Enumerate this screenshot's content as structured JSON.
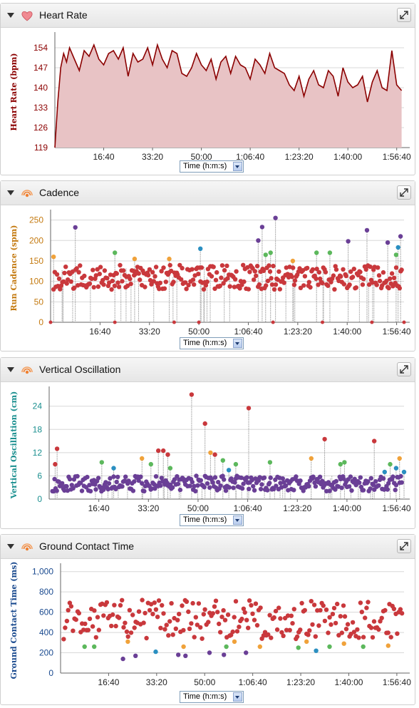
{
  "panels": [
    {
      "title": "Heart Rate",
      "icon": "heart-icon"
    },
    {
      "title": "Cadence",
      "icon": "sensor-icon"
    },
    {
      "title": "Vertical Oscillation",
      "icon": "sensor-icon"
    },
    {
      "title": "Ground Contact Time",
      "icon": "sensor-icon"
    }
  ],
  "time_select_label": "Time (h:m:s)",
  "x_tick_labels": [
    "16:40",
    "33:20",
    "50:00",
    "1:06:40",
    "1:23:20",
    "1:40:00",
    "1:56:40"
  ],
  "colors": {
    "hr_line": "#8b0000",
    "hr_fill": "#e8c3c5",
    "red": "#c9383c",
    "orange": "#f0a23a",
    "green": "#5cb85c",
    "blue": "#2a8fc1",
    "purple": "#6a3f96",
    "cadence_label": "#c47a10",
    "vo_label": "#1a8f8f",
    "gct_label": "#1a4a8f"
  },
  "chart_data": [
    {
      "type": "area",
      "title": "Heart Rate",
      "ylabel": "Heart Rate (bpm)",
      "yticks": [
        119,
        126,
        133,
        140,
        147,
        154
      ],
      "ylim": [
        119,
        158
      ],
      "xlim": [
        0,
        7150
      ],
      "xticks_seconds": [
        1000,
        2000,
        3000,
        4000,
        5000,
        6000,
        7000
      ],
      "x": [
        0,
        60,
        120,
        180,
        240,
        300,
        400,
        500,
        600,
        700,
        800,
        900,
        1000,
        1100,
        1200,
        1300,
        1400,
        1500,
        1600,
        1700,
        1800,
        1900,
        2000,
        2100,
        2200,
        2300,
        2400,
        2500,
        2600,
        2700,
        2800,
        2900,
        3000,
        3100,
        3200,
        3300,
        3400,
        3500,
        3600,
        3700,
        3800,
        3900,
        4000,
        4100,
        4200,
        4300,
        4400,
        4500,
        4600,
        4700,
        4800,
        4900,
        5000,
        5100,
        5200,
        5300,
        5400,
        5500,
        5600,
        5700,
        5800,
        5900,
        6000,
        6100,
        6200,
        6300,
        6400,
        6500,
        6600,
        6700,
        6800,
        6900,
        7000,
        7100
      ],
      "y": [
        119,
        135,
        147,
        152,
        149,
        154,
        150,
        146,
        153,
        151,
        155,
        150,
        148,
        152,
        153,
        150,
        154,
        144,
        152,
        149,
        150,
        154,
        148,
        155,
        150,
        147,
        153,
        152,
        145,
        144,
        147,
        152,
        148,
        146,
        150,
        143,
        149,
        151,
        145,
        151,
        148,
        147,
        143,
        150,
        148,
        145,
        152,
        147,
        146,
        145,
        141,
        139,
        144,
        137,
        143,
        146,
        141,
        140,
        146,
        144,
        137,
        147,
        142,
        140,
        141,
        144,
        135,
        142,
        146,
        140,
        139,
        153,
        141,
        139
      ]
    },
    {
      "type": "scatter",
      "title": "Cadence",
      "ylabel": "Run Cadence (spm)",
      "yticks": [
        0,
        50,
        100,
        150,
        200,
        250
      ],
      "ylim": [
        0,
        265
      ],
      "xlim": [
        0,
        7150
      ],
      "xticks_seconds": [
        1000,
        2000,
        3000,
        4000,
        5000,
        6000,
        7000
      ],
      "typical_range": [
        80,
        140
      ],
      "highlighted_points": [
        {
          "x": 60,
          "y": 160,
          "color": "orange"
        },
        {
          "x": 500,
          "y": 232,
          "color": "purple"
        },
        {
          "x": 1300,
          "y": 170,
          "color": "green"
        },
        {
          "x": 1700,
          "y": 155,
          "color": "orange"
        },
        {
          "x": 2400,
          "y": 155,
          "color": "orange"
        },
        {
          "x": 3030,
          "y": 180,
          "color": "blue"
        },
        {
          "x": 4280,
          "y": 233,
          "color": "purple"
        },
        {
          "x": 4200,
          "y": 200,
          "color": "purple"
        },
        {
          "x": 4350,
          "y": 165,
          "color": "green"
        },
        {
          "x": 4450,
          "y": 170,
          "color": "green"
        },
        {
          "x": 4550,
          "y": 255,
          "color": "purple"
        },
        {
          "x": 4900,
          "y": 150,
          "color": "orange"
        },
        {
          "x": 5380,
          "y": 170,
          "color": "green"
        },
        {
          "x": 5650,
          "y": 170,
          "color": "green"
        },
        {
          "x": 6020,
          "y": 198,
          "color": "purple"
        },
        {
          "x": 6400,
          "y": 225,
          "color": "purple"
        },
        {
          "x": 6820,
          "y": 195,
          "color": "purple"
        },
        {
          "x": 6990,
          "y": 165,
          "color": "green"
        },
        {
          "x": 7030,
          "y": 183,
          "color": "blue"
        },
        {
          "x": 7080,
          "y": 210,
          "color": "purple"
        }
      ]
    },
    {
      "type": "scatter",
      "title": "Vertical Oscillation",
      "ylabel": "Vertical Oscillation (cm)",
      "yticks": [
        0,
        6,
        12,
        18,
        24
      ],
      "ylim": [
        0,
        28
      ],
      "xlim": [
        0,
        7150
      ],
      "xticks_seconds": [
        1000,
        2000,
        3000,
        4000,
        5000,
        6000,
        7000
      ],
      "typical_range": [
        2,
        6
      ],
      "highlighted_points": [
        {
          "x": 160,
          "y": 13,
          "color": "red"
        },
        {
          "x": 120,
          "y": 9,
          "color": "red"
        },
        {
          "x": 1060,
          "y": 9.5,
          "color": "green"
        },
        {
          "x": 1300,
          "y": 8,
          "color": "blue"
        },
        {
          "x": 1870,
          "y": 10.5,
          "color": "orange"
        },
        {
          "x": 2050,
          "y": 9,
          "color": "green"
        },
        {
          "x": 2200,
          "y": 12.5,
          "color": "red"
        },
        {
          "x": 2300,
          "y": 12.5,
          "color": "red"
        },
        {
          "x": 2390,
          "y": 11.5,
          "color": "red"
        },
        {
          "x": 2440,
          "y": 8,
          "color": "green"
        },
        {
          "x": 2870,
          "y": 27,
          "color": "red"
        },
        {
          "x": 3140,
          "y": 19.5,
          "color": "red"
        },
        {
          "x": 3250,
          "y": 12,
          "color": "orange"
        },
        {
          "x": 3340,
          "y": 11.5,
          "color": "red"
        },
        {
          "x": 3500,
          "y": 10,
          "color": "green"
        },
        {
          "x": 3620,
          "y": 7.5,
          "color": "blue"
        },
        {
          "x": 3760,
          "y": 9,
          "color": "green"
        },
        {
          "x": 4020,
          "y": 23.5,
          "color": "red"
        },
        {
          "x": 4450,
          "y": 9.5,
          "color": "green"
        },
        {
          "x": 5280,
          "y": 10.5,
          "color": "orange"
        },
        {
          "x": 5550,
          "y": 15.5,
          "color": "red"
        },
        {
          "x": 5870,
          "y": 9,
          "color": "green"
        },
        {
          "x": 5950,
          "y": 9.5,
          "color": "green"
        },
        {
          "x": 6550,
          "y": 15,
          "color": "red"
        },
        {
          "x": 6760,
          "y": 7,
          "color": "blue"
        },
        {
          "x": 6870,
          "y": 9,
          "color": "green"
        },
        {
          "x": 6990,
          "y": 8,
          "color": "blue"
        },
        {
          "x": 7060,
          "y": 10.5,
          "color": "orange"
        },
        {
          "x": 7150,
          "y": 7,
          "color": "blue"
        }
      ]
    },
    {
      "type": "scatter",
      "title": "Ground Contact Time",
      "ylabel": "Ground Contact Time (ms)",
      "yticks": [
        0,
        200,
        400,
        600,
        800,
        1000
      ],
      "ytick_labels": [
        "0",
        "200",
        "400",
        "600",
        "800",
        "1,000"
      ],
      "ylim": [
        0,
        1040
      ],
      "xlim": [
        0,
        7150
      ],
      "xticks_seconds": [
        1000,
        2000,
        3000,
        4000,
        5000,
        6000,
        7000
      ],
      "typical_range": [
        330,
        720
      ],
      "highlighted_points": [
        {
          "x": 500,
          "y": 260,
          "color": "green"
        },
        {
          "x": 700,
          "y": 260,
          "color": "green"
        },
        {
          "x": 1300,
          "y": 140,
          "color": "purple"
        },
        {
          "x": 1400,
          "y": 310,
          "color": "orange"
        },
        {
          "x": 1560,
          "y": 170,
          "color": "purple"
        },
        {
          "x": 1980,
          "y": 210,
          "color": "blue"
        },
        {
          "x": 2450,
          "y": 180,
          "color": "purple"
        },
        {
          "x": 2560,
          "y": 260,
          "color": "orange"
        },
        {
          "x": 2600,
          "y": 170,
          "color": "purple"
        },
        {
          "x": 3100,
          "y": 200,
          "color": "purple"
        },
        {
          "x": 3400,
          "y": 180,
          "color": "purple"
        },
        {
          "x": 3450,
          "y": 260,
          "color": "green"
        },
        {
          "x": 3620,
          "y": 310,
          "color": "orange"
        },
        {
          "x": 3860,
          "y": 200,
          "color": "purple"
        },
        {
          "x": 4150,
          "y": 260,
          "color": "orange"
        },
        {
          "x": 4950,
          "y": 250,
          "color": "green"
        },
        {
          "x": 5120,
          "y": 310,
          "color": "orange"
        },
        {
          "x": 5320,
          "y": 220,
          "color": "blue"
        },
        {
          "x": 5600,
          "y": 260,
          "color": "green"
        },
        {
          "x": 5900,
          "y": 290,
          "color": "orange"
        },
        {
          "x": 6300,
          "y": 260,
          "color": "green"
        },
        {
          "x": 6820,
          "y": 270,
          "color": "orange"
        }
      ]
    }
  ]
}
